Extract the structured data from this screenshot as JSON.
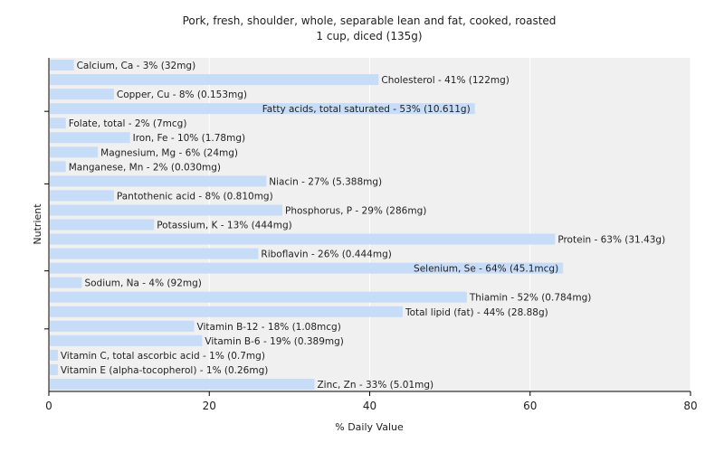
{
  "chart_data": {
    "type": "bar",
    "orientation": "horizontal",
    "title": "Pork, fresh, shoulder, whole, separable lean and fat, cooked, roasted",
    "subtitle": "1 cup, diced (135g)",
    "xlabel": "% Daily Value",
    "ylabel": "Nutrient",
    "xlim": [
      0,
      80
    ],
    "xticks": [
      0,
      20,
      40,
      60,
      80
    ],
    "grid": true,
    "bar_color": "#c6dcf7",
    "categories": [
      "Calcium, Ca",
      "Cholesterol",
      "Copper, Cu",
      "Fatty acids, total saturated",
      "Folate, total",
      "Iron, Fe",
      "Magnesium, Mg",
      "Manganese, Mn",
      "Niacin",
      "Pantothenic acid",
      "Phosphorus, P",
      "Potassium, K",
      "Protein",
      "Riboflavin",
      "Selenium, Se",
      "Sodium, Na",
      "Thiamin",
      "Total lipid (fat)",
      "Vitamin B-12",
      "Vitamin B-6",
      "Vitamin C, total ascorbic acid",
      "Vitamin E (alpha-tocopherol)",
      "Zinc, Zn"
    ],
    "values": [
      3,
      41,
      8,
      53,
      2,
      10,
      6,
      2,
      27,
      8,
      29,
      13,
      63,
      26,
      64,
      4,
      52,
      44,
      18,
      19,
      1,
      1,
      33
    ],
    "labels": [
      "Calcium, Ca - 3% (32mg)",
      "Cholesterol - 41% (122mg)",
      "Copper, Cu - 8% (0.153mg)",
      "Fatty acids, total saturated - 53% (10.611g)",
      "Folate, total - 2% (7mcg)",
      "Iron, Fe - 10% (1.78mg)",
      "Magnesium, Mg - 6% (24mg)",
      "Manganese, Mn - 2% (0.030mg)",
      "Niacin - 27% (5.388mg)",
      "Pantothenic acid - 8% (0.810mg)",
      "Phosphorus, P - 29% (286mg)",
      "Potassium, K - 13% (444mg)",
      "Protein - 63% (31.43g)",
      "Riboflavin - 26% (0.444mg)",
      "Selenium, Se - 64% (45.1mcg)",
      "Sodium, Na - 4% (92mg)",
      "Thiamin - 52% (0.784mg)",
      "Total lipid (fat) - 44% (28.88g)",
      "Vitamin B-12 - 18% (1.08mcg)",
      "Vitamin B-6 - 19% (0.389mg)",
      "Vitamin C, total ascorbic acid - 1% (0.7mg)",
      "Vitamin E (alpha-tocopherol) - 1% (0.26mg)",
      "Zinc, Zn - 33% (5.01mg)"
    ]
  }
}
